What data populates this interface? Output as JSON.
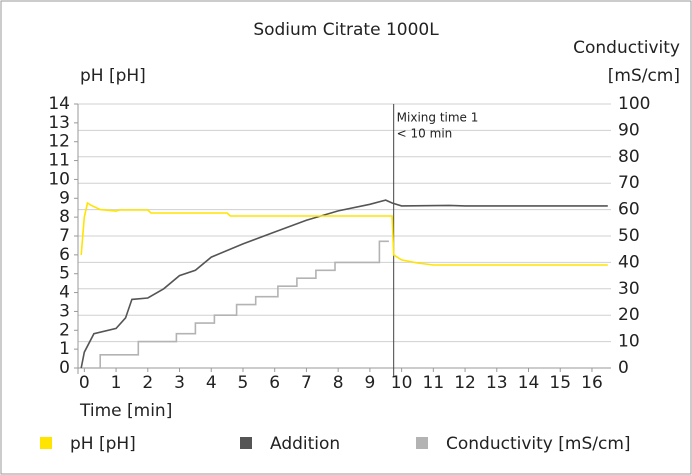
{
  "chart_data": {
    "type": "line",
    "title": "Sodium Citrate 1000L",
    "y_label": "pH [pH]",
    "y2_label": [
      "Conductivity",
      "[mS/cm]"
    ],
    "x_label": "Time [min]",
    "xlim": [
      -0.2,
      16.6
    ],
    "xticks": [
      0,
      1,
      2,
      3,
      4,
      5,
      6,
      7,
      8,
      9,
      10,
      11,
      12,
      13,
      14,
      15,
      16
    ],
    "ylim": [
      0,
      14
    ],
    "yticks": [
      0,
      1,
      2,
      3,
      4,
      5,
      6,
      7,
      8,
      9,
      10,
      11,
      12,
      13,
      14
    ],
    "y2lim": [
      0,
      100
    ],
    "y2ticks": [
      0,
      10,
      20,
      30,
      40,
      50,
      60,
      70,
      80,
      90,
      100
    ],
    "grid": true,
    "annotation": {
      "x": 9.75,
      "lines": [
        "Mixing time 1",
        "< 10 min"
      ]
    },
    "series": [
      {
        "name": "pH [pH]",
        "color": "#ffe400",
        "axis": "y",
        "x": [
          -0.1,
          0,
          0.1,
          0.2,
          0.5,
          1,
          1.1,
          2,
          2.1,
          4.5,
          4.6,
          9.7,
          9.75,
          10,
          10.5,
          11,
          16.5
        ],
        "values": [
          6.0,
          8.0,
          8.75,
          8.64,
          8.4,
          8.32,
          8.38,
          8.38,
          8.22,
          8.22,
          8.06,
          8.06,
          6.0,
          5.73,
          5.57,
          5.46,
          5.46
        ]
      },
      {
        "name": "Addition",
        "color": "#555555",
        "axis": "y2",
        "x": [
          -0.1,
          0,
          0.3,
          1,
          1.3,
          1.5,
          2,
          2.5,
          3,
          3.5,
          4,
          5,
          6,
          7,
          8,
          9,
          9.5,
          9.7,
          10,
          11.5,
          12,
          16.5
        ],
        "values": [
          0,
          6,
          13,
          15,
          19,
          26,
          26.5,
          30,
          35,
          37,
          42,
          47,
          51.5,
          56,
          59.5,
          62,
          63.6,
          62.5,
          61.4,
          61.6,
          61.4,
          61.4
        ]
      },
      {
        "name": "Conductivity [mS/cm]",
        "color": "#b3b3b3",
        "axis": "y2",
        "x": [
          -0.1,
          0.5,
          0.5,
          1.7,
          1.7,
          2.9,
          2.9,
          3.5,
          3.5,
          4.1,
          4.1,
          4.8,
          4.8,
          5.4,
          5.4,
          6.1,
          6.1,
          6.7,
          6.7,
          7.3,
          7.3,
          7.9,
          7.9,
          9.3,
          9.3,
          9.6
        ],
        "values": [
          0,
          0,
          5,
          5,
          10,
          10,
          13,
          13,
          17,
          17,
          20,
          20,
          24,
          24,
          27,
          27,
          31,
          31,
          34,
          34,
          37,
          37,
          40,
          40,
          48,
          48
        ]
      }
    ]
  }
}
